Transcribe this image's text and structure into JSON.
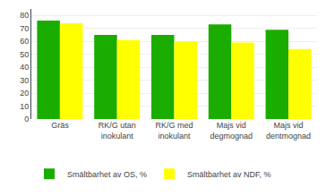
{
  "chart_data": {
    "type": "bar",
    "categories": [
      "Gräs",
      "RK/G utan\ninokulant",
      "RK/G med\ninokulant",
      "Majs vid\ndegmognad",
      "Majs vid\ndentmognad"
    ],
    "series": [
      {
        "name": "Smältbarhet av OS, %",
        "color": "#1aad00",
        "values": [
          76,
          65,
          65,
          73,
          69
        ]
      },
      {
        "name": "Smältbarhet av NDF, %",
        "color": "#ffff00",
        "values": [
          74,
          61,
          60,
          59,
          54
        ]
      }
    ],
    "ylim": [
      0,
      85
    ],
    "yticks": [
      0,
      10,
      20,
      30,
      40,
      50,
      60,
      70,
      80
    ],
    "grid": true,
    "legend": "bottom"
  }
}
